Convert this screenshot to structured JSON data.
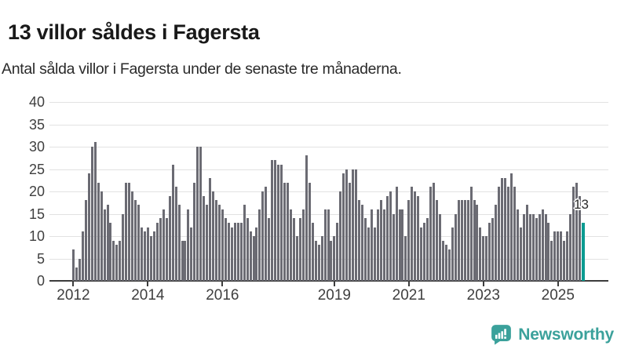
{
  "header": {
    "title": "13 villor såldes i Fagersta",
    "subtitle": "Antal sålda villor i Fagersta under de senaste tre månaderna."
  },
  "chart_data": {
    "type": "bar",
    "title": "13 villor såldes i Fagersta",
    "subtitle": "Antal sålda villor i Fagersta under de senaste tre månaderna.",
    "ylabel": "",
    "xlabel": "",
    "ylim": [
      0,
      40
    ],
    "y_ticks": [
      0,
      5,
      10,
      15,
      20,
      25,
      30,
      35,
      40
    ],
    "x_tick_labels": [
      "2012",
      "2014",
      "2016",
      "2019",
      "2021",
      "2023",
      "2025"
    ],
    "grid": "horizontal",
    "legend": "none",
    "bar_color": "#6b6b73",
    "series": [
      {
        "year": 2012,
        "values": [
          7,
          3,
          5,
          11,
          18,
          24,
          30,
          31,
          22,
          20,
          16,
          17
        ]
      },
      {
        "year": 2013,
        "values": [
          13,
          9,
          8,
          9,
          15,
          22,
          22,
          20,
          18,
          17,
          12,
          11
        ]
      },
      {
        "year": 2014,
        "values": [
          12,
          10,
          11,
          13,
          14,
          16,
          14,
          19,
          26,
          21,
          17,
          9
        ]
      },
      {
        "year": 2015,
        "values": [
          9,
          16,
          12,
          22,
          30,
          30,
          19,
          17,
          23,
          20,
          18,
          17
        ]
      },
      {
        "year": 2016,
        "values": [
          16,
          14,
          13,
          12,
          13,
          13,
          13,
          17,
          14,
          11,
          10,
          12
        ]
      },
      {
        "year": 2017,
        "values": [
          16,
          20,
          21,
          14,
          27,
          27,
          26,
          26,
          22,
          22,
          16,
          14
        ]
      },
      {
        "year": 2018,
        "values": [
          10,
          14,
          16,
          28,
          22,
          13,
          9,
          8,
          10,
          16,
          16,
          9
        ]
      },
      {
        "year": 2019,
        "values": [
          10,
          13,
          20,
          24,
          25,
          22,
          25,
          25,
          18,
          17,
          14,
          12
        ]
      },
      {
        "year": 2020,
        "values": [
          16,
          12,
          16,
          18,
          16,
          19,
          20,
          15,
          21,
          16,
          16,
          10
        ]
      },
      {
        "year": 2021,
        "values": [
          18,
          21,
          20,
          19,
          12,
          13,
          14,
          21,
          22,
          18,
          15,
          9
        ]
      },
      {
        "year": 2022,
        "values": [
          8,
          7,
          12,
          15,
          18,
          18,
          18,
          18,
          21,
          18,
          17,
          12
        ]
      },
      {
        "year": 2023,
        "values": [
          10,
          10,
          13,
          14,
          17,
          21,
          23,
          23,
          21,
          24,
          21,
          16
        ]
      },
      {
        "year": 2024,
        "values": [
          12,
          15,
          17,
          15,
          15,
          14,
          15,
          16,
          15,
          13,
          9,
          11
        ]
      },
      {
        "year": 2025,
        "values": [
          11,
          11,
          9,
          11,
          15,
          21,
          22,
          19,
          13
        ]
      }
    ],
    "highlight": {
      "position": "last",
      "value": 13,
      "label": "13",
      "color": "#0a9b91"
    }
  },
  "annotation": {
    "label": "13"
  },
  "footer": {
    "brand": "Newsworthy"
  },
  "colors": {
    "bar": "#6b6b73",
    "highlight": "#0a9b91",
    "grid": "#e2e2e2",
    "axis": "#3c3c3c",
    "brand": "#3ba19b"
  }
}
